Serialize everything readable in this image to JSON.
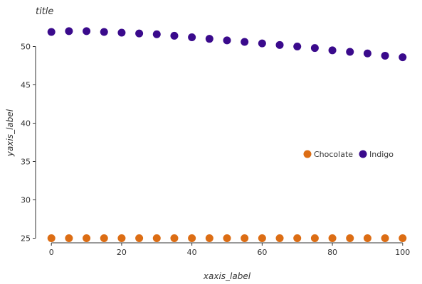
{
  "chart_data": {
    "type": "scatter",
    "title": "title",
    "xlabel": "xaxis_label",
    "ylabel": "yaxis_label",
    "xlim": [
      -4.5,
      104.5
    ],
    "ylim": [
      24.4,
      53.1
    ],
    "xticks": [
      0,
      20,
      40,
      60,
      80,
      100
    ],
    "yticks": [
      25,
      30,
      35,
      40,
      45,
      50
    ],
    "grid": false,
    "legend_position": "right",
    "series": [
      {
        "name": "Indigo",
        "color": "#3a0a8c",
        "x": [
          0,
          5,
          10,
          15,
          20,
          25,
          30,
          35,
          40,
          45,
          50,
          55,
          60,
          65,
          70,
          75,
          80,
          85,
          90,
          95,
          100
        ],
        "y": [
          51.9,
          52.0,
          52.0,
          51.9,
          51.8,
          51.7,
          51.6,
          51.4,
          51.2,
          51.0,
          50.8,
          50.6,
          50.4,
          50.2,
          50.0,
          49.8,
          49.5,
          49.3,
          49.1,
          48.8,
          48.6
        ]
      },
      {
        "name": "Chocolate",
        "color": "#dc6d14",
        "x": [
          0,
          5,
          10,
          15,
          20,
          25,
          30,
          35,
          40,
          45,
          50,
          55,
          60,
          65,
          70,
          75,
          80,
          85,
          90,
          95,
          100
        ],
        "y": [
          25,
          25,
          25,
          25,
          25,
          25,
          25,
          25,
          25,
          25,
          25,
          25,
          25,
          25,
          25,
          25,
          25,
          25,
          25,
          25,
          25
        ]
      }
    ],
    "legend_order": [
      "Chocolate",
      "Indigo"
    ]
  }
}
